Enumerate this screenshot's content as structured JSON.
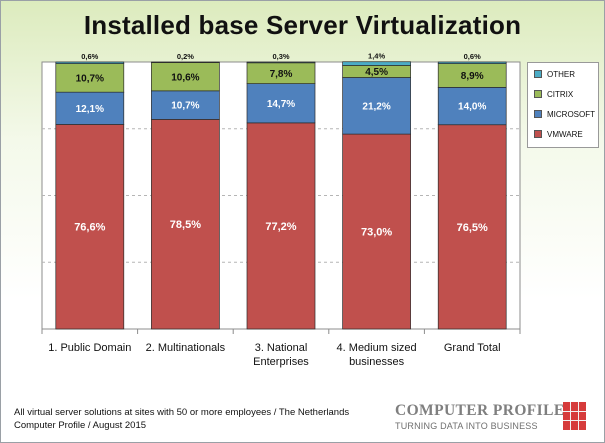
{
  "title": "Installed base Server Virtualization",
  "colors": {
    "OTHER": "#4bacc6",
    "CITRIX": "#9bbb59",
    "MICROSOFT": "#4f81bd",
    "VMWARE": "#c0504d",
    "background_top": "#dcebbd"
  },
  "chart_data": {
    "type": "bar",
    "stacked": true,
    "percent_stacked": true,
    "categories": [
      "1. Public Domain",
      "2. Multinationals",
      "3. National Enterprises",
      "4. Medium sized businesses",
      "Grand Total"
    ],
    "series": [
      {
        "name": "VMWARE",
        "values": [
          76.6,
          78.5,
          77.2,
          73.0,
          76.5
        ],
        "labels": [
          "76,6%",
          "78,5%",
          "77,2%",
          "73,0%",
          "76,5%"
        ]
      },
      {
        "name": "MICROSOFT",
        "values": [
          12.1,
          10.7,
          14.7,
          21.2,
          14.0
        ],
        "labels": [
          "12,1%",
          "10,7%",
          "14,7%",
          "21,2%",
          "14,0%"
        ]
      },
      {
        "name": "CITRIX",
        "values": [
          10.7,
          10.6,
          7.8,
          4.5,
          8.9
        ],
        "labels": [
          "10,7%",
          "10,6%",
          "7,8%",
          "4,5%",
          "8,9%"
        ]
      },
      {
        "name": "OTHER",
        "values": [
          0.6,
          0.2,
          0.3,
          1.4,
          0.6
        ],
        "labels": [
          "0,6%",
          "0,2%",
          "0,3%",
          "1,4%",
          "0,6%"
        ]
      }
    ],
    "ylim": [
      0,
      100
    ],
    "grid": true,
    "legend": "right",
    "legend_order": [
      "OTHER",
      "CITRIX",
      "MICROSOFT",
      "VMWARE"
    ]
  },
  "footnote": {
    "line1": "All virtual server solutions at sites with 50 or more employees / The Netherlands",
    "line2": "Computer Profile / August 2015"
  },
  "logo": {
    "name": "COMPUTER PROFILE",
    "slogan": "TURNING DATA INTO BUSINESS"
  }
}
